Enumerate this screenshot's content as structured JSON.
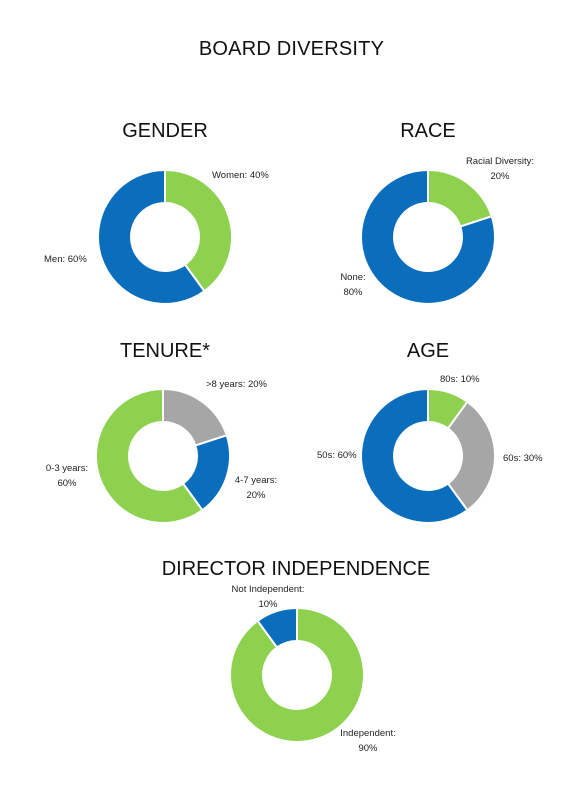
{
  "page": {
    "title": "BOARD DIVERSITY"
  },
  "colors": {
    "blue": "#0a6ebd",
    "green": "#8ed14f",
    "gray": "#a6a6a6"
  },
  "chart_data": [
    {
      "type": "pie",
      "title": "GENDER",
      "slices": [
        {
          "name": "Women",
          "value": 40,
          "label": "Women: 40%",
          "color": "#8ed14f"
        },
        {
          "name": "Men",
          "value": 60,
          "label": "Men: 60%",
          "color": "#0a6ebd"
        }
      ]
    },
    {
      "type": "pie",
      "title": "RACE",
      "slices": [
        {
          "name": "Racial Diversity",
          "value": 20,
          "label_line1": "Racial Diversity:",
          "label_line2": "20%",
          "color": "#8ed14f"
        },
        {
          "name": "None",
          "value": 80,
          "label_line1": "None:",
          "label_line2": "80%",
          "color": "#0a6ebd"
        }
      ]
    },
    {
      "type": "pie",
      "title": "TENURE*",
      "slices": [
        {
          "name": ">8 years",
          "value": 20,
          "label": ">8 years: 20%",
          "color": "#a6a6a6"
        },
        {
          "name": "4-7 years",
          "value": 20,
          "label_line1": "4-7 years:",
          "label_line2": "20%",
          "color": "#0a6ebd"
        },
        {
          "name": "0-3 years",
          "value": 60,
          "label_line1": "0-3 years:",
          "label_line2": "60%",
          "color": "#8ed14f"
        }
      ]
    },
    {
      "type": "pie",
      "title": "AGE",
      "slices": [
        {
          "name": "80s",
          "value": 10,
          "label": "80s: 10%",
          "color": "#8ed14f"
        },
        {
          "name": "60s",
          "value": 30,
          "label": "60s: 30%",
          "color": "#a6a6a6"
        },
        {
          "name": "50s",
          "value": 60,
          "label": "50s: 60%",
          "color": "#0a6ebd"
        }
      ]
    },
    {
      "type": "pie",
      "title": "DIRECTOR INDEPENDENCE",
      "slices": [
        {
          "name": "Independent",
          "value": 90,
          "label_line1": "Independent:",
          "label_line2": "90%",
          "color": "#8ed14f"
        },
        {
          "name": "Not Independent",
          "value": 10,
          "label_line1": "Not Independent:",
          "label_line2": "10%",
          "color": "#0a6ebd"
        }
      ]
    }
  ]
}
